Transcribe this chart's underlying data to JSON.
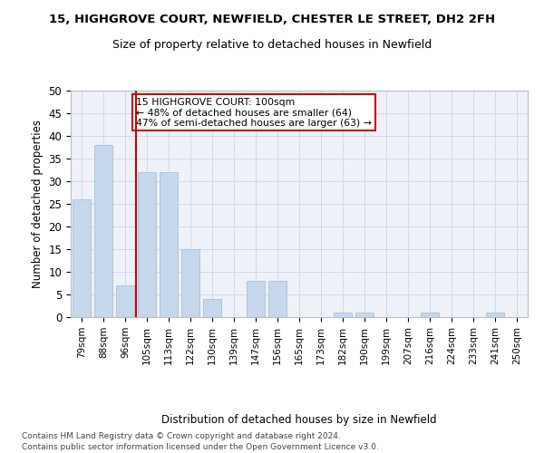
{
  "title1": "15, HIGHGROVE COURT, NEWFIELD, CHESTER LE STREET, DH2 2FH",
  "title2": "Size of property relative to detached houses in Newfield",
  "xlabel": "Distribution of detached houses by size in Newfield",
  "ylabel": "Number of detached properties",
  "categories": [
    "79sqm",
    "88sqm",
    "96sqm",
    "105sqm",
    "113sqm",
    "122sqm",
    "130sqm",
    "139sqm",
    "147sqm",
    "156sqm",
    "165sqm",
    "173sqm",
    "182sqm",
    "190sqm",
    "199sqm",
    "207sqm",
    "216sqm",
    "224sqm",
    "233sqm",
    "241sqm",
    "250sqm"
  ],
  "values": [
    26,
    38,
    7,
    32,
    32,
    15,
    4,
    0,
    8,
    8,
    0,
    0,
    1,
    1,
    0,
    0,
    1,
    0,
    0,
    1,
    0
  ],
  "bar_color": "#c5d8ed",
  "bar_edge_color": "#a8c0d8",
  "grid_color": "#d0d8e8",
  "ref_line_color": "#cc0000",
  "annotation_text": "15 HIGHGROVE COURT: 100sqm\n← 48% of detached houses are smaller (64)\n47% of semi-detached houses are larger (63) →",
  "annotation_box_color": "#cc0000",
  "ylim": [
    0,
    50
  ],
  "yticks": [
    0,
    5,
    10,
    15,
    20,
    25,
    30,
    35,
    40,
    45,
    50
  ],
  "footnote1": "Contains HM Land Registry data © Crown copyright and database right 2024.",
  "footnote2": "Contains public sector information licensed under the Open Government Licence v3.0.",
  "bg_color": "#eef2f8"
}
